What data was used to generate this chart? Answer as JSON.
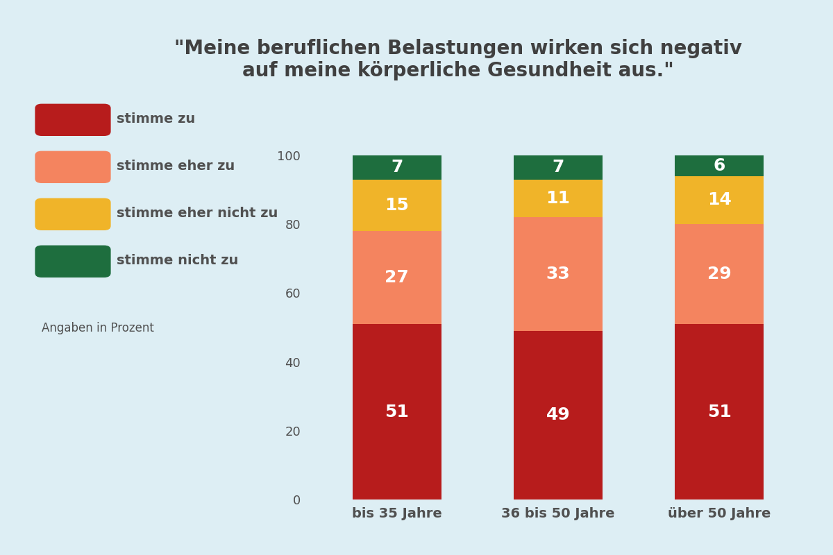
{
  "title": "\"Meine beruflichen Belastungen wirken sich negativ\nauf meine körperliche Gesundheit aus.\"",
  "background_color": "#ddeef4",
  "categories": [
    "bis 35 Jahre",
    "36 bis 50 Jahre",
    "über 50 Jahre"
  ],
  "segments": {
    "stimme zu": [
      51,
      49,
      51
    ],
    "stimme eher zu": [
      27,
      33,
      29
    ],
    "stimme eher nicht zu": [
      15,
      11,
      14
    ],
    "stimme nicht zu": [
      7,
      7,
      6
    ]
  },
  "colors": {
    "stimme zu": "#b71c1c",
    "stimme eher zu": "#f4845f",
    "stimme eher nicht zu": "#f0b429",
    "stimme nicht zu": "#1e6e3e"
  },
  "legend_labels": [
    "stimme zu",
    "stimme eher zu",
    "stimme eher nicht zu",
    "stimme nicht zu"
  ],
  "yticks": [
    0,
    20,
    40,
    60,
    80,
    100
  ],
  "bar_width": 0.55,
  "label_color": "#ffffff",
  "title_color": "#404040",
  "tick_label_color": "#505050",
  "angaben_text": "Angaben in Prozent"
}
